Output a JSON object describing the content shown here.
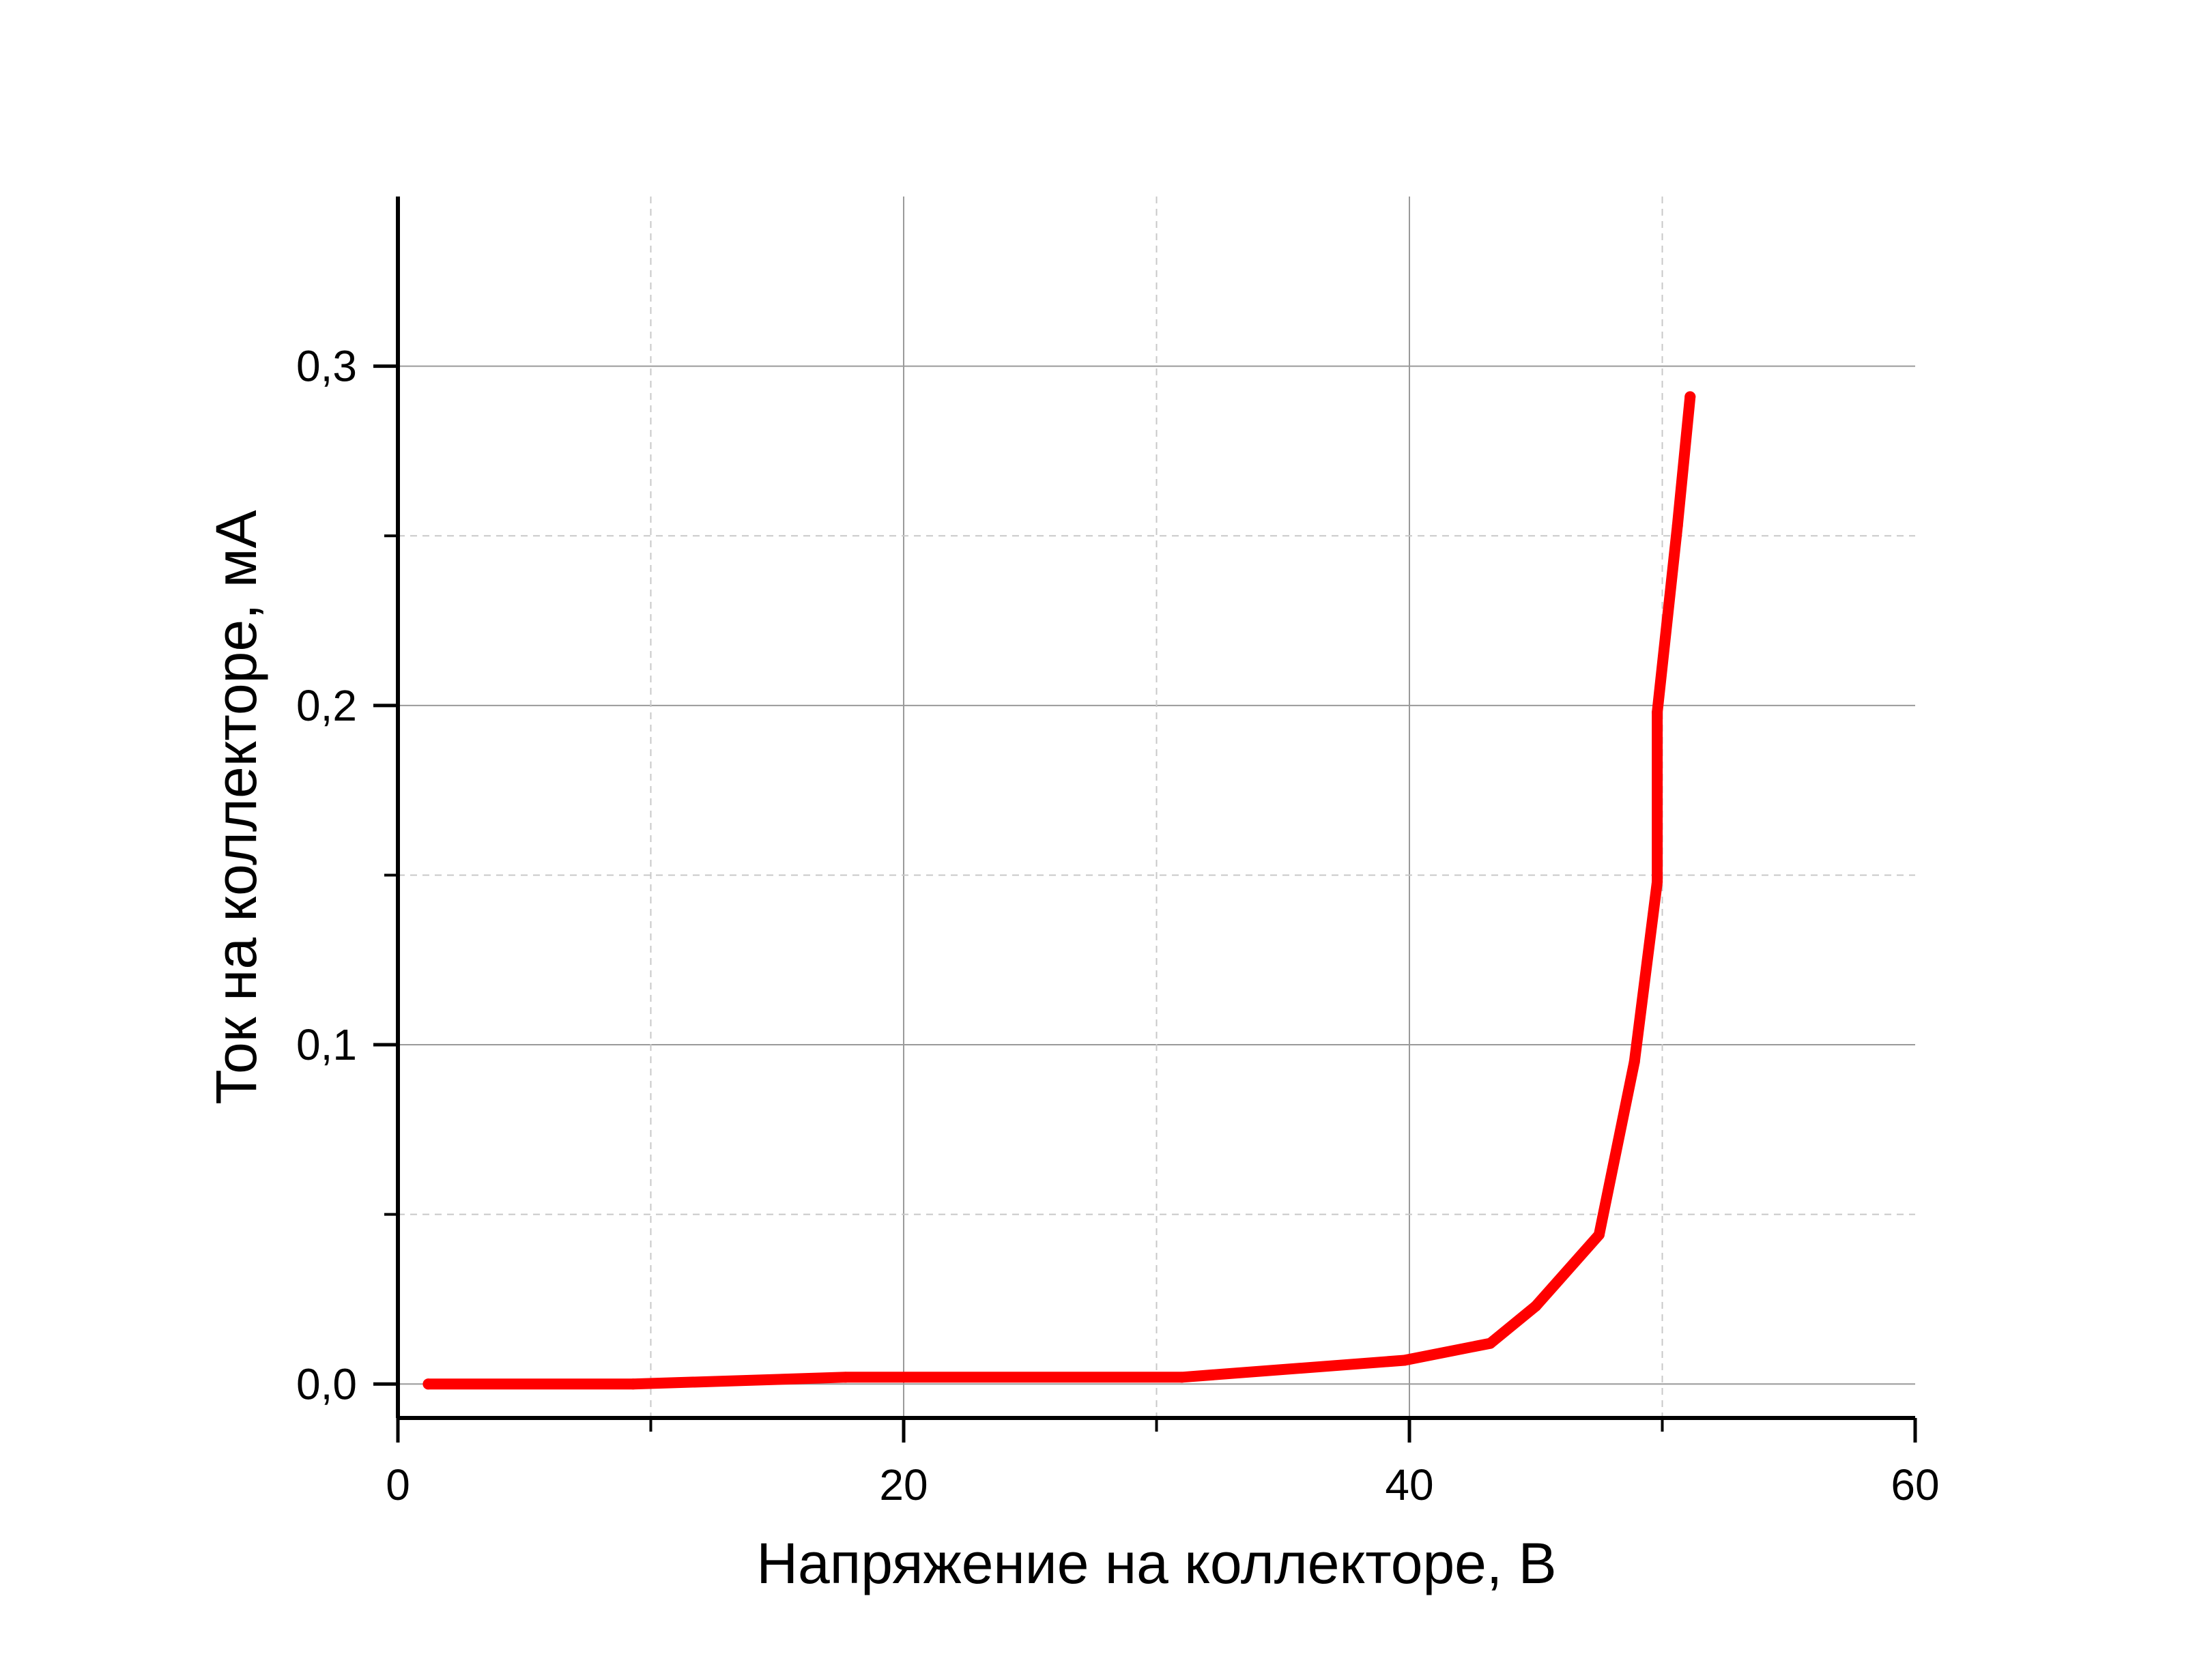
{
  "chart_data": {
    "type": "line",
    "title": "",
    "xlabel": "Напряжение на коллекторе, В",
    "ylabel": "Ток на коллекторе, мА",
    "xlim": [
      0,
      60
    ],
    "ylim": [
      -0.01,
      0.35
    ],
    "x_ticks": [
      0,
      20,
      40,
      60
    ],
    "x_tick_labels": [
      "0",
      "20",
      "40",
      "60"
    ],
    "x_minor_ticks": [
      10,
      30,
      50
    ],
    "y_ticks": [
      0.0,
      0.1,
      0.2,
      0.3
    ],
    "y_tick_labels": [
      "0,0",
      "0,1",
      "0,2",
      "0,3"
    ],
    "y_minor_ticks": [
      0.05,
      0.15,
      0.25
    ],
    "grid": true,
    "legend": "none",
    "series": [
      {
        "color": "#ff0000",
        "x": [
          1.2,
          9.3,
          17.7,
          31.0,
          39.8,
          43.2,
          45.0,
          47.5,
          48.9,
          49.8,
          49.8,
          50.6,
          51.1
        ],
        "y": [
          0.0,
          0.0,
          0.002,
          0.002,
          0.007,
          0.012,
          0.023,
          0.044,
          0.095,
          0.148,
          0.198,
          0.253,
          0.291
        ]
      }
    ]
  }
}
